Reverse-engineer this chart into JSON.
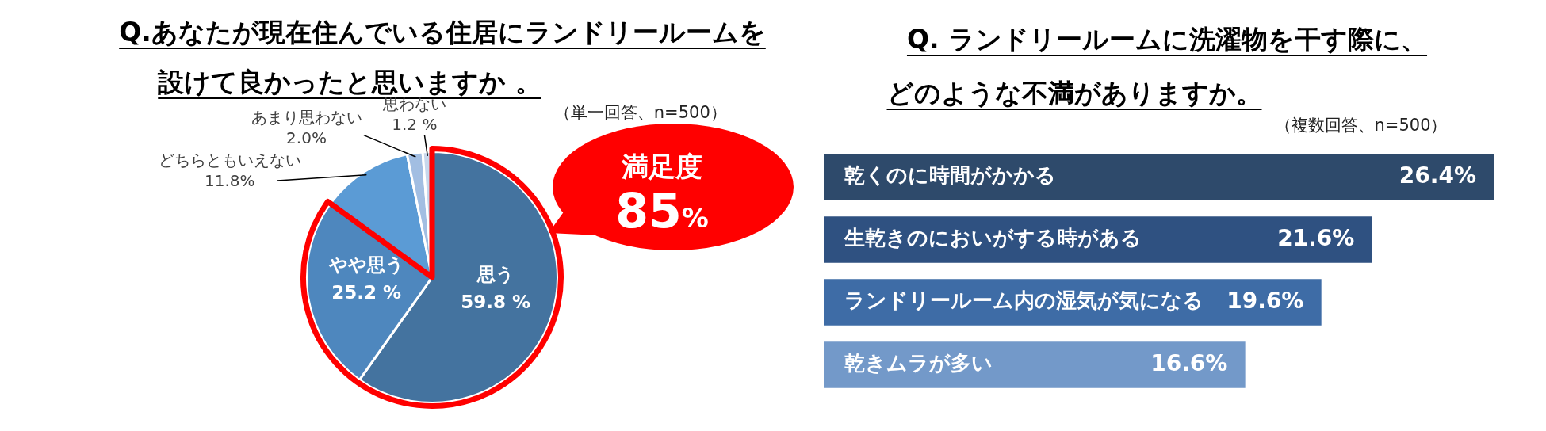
{
  "chart_data": [
    {
      "type": "pie",
      "title": "Q.あなたが現在住んでいる住居にランドリールームを設けて良かったと思いますか 。",
      "subtitle": "（単一回答、n=500）",
      "categories": [
        "思う",
        "やや思う",
        "どちらともいえない",
        "あまり思わない",
        "思わない"
      ],
      "values": [
        59.8,
        25.2,
        11.8,
        2.0,
        1.2
      ],
      "colors": [
        "#44739f",
        "#4e87be",
        "#5b9bd5",
        "#a2bee2",
        "#c8d7ec"
      ],
      "value_labels": [
        "59.8 %",
        "25.2 %",
        "11.8%",
        "2.0%",
        "1.2 %"
      ],
      "annotations": [
        "満足度",
        "85%"
      ]
    },
    {
      "type": "bar",
      "orientation": "horizontal",
      "title": "Q. ランドリールームに洗濯物を干す際に、どのような不満がありますか。",
      "subtitle": "（複数回答、n=500）",
      "categories": [
        "乾くのに時間がかかる",
        "生乾きのにおいがする時がある",
        "ランドリールーム内の湿気が気になる",
        "乾きムラが多い"
      ],
      "values": [
        26.4,
        21.6,
        19.6,
        16.6
      ],
      "colors": [
        "#2e4a6b",
        "#2f5181",
        "#3e6ca6",
        "#7399c9"
      ],
      "value_labels": [
        "26.4%",
        "21.6%",
        "19.6%",
        "16.6%"
      ],
      "tick_labels": "y"
    }
  ]
}
